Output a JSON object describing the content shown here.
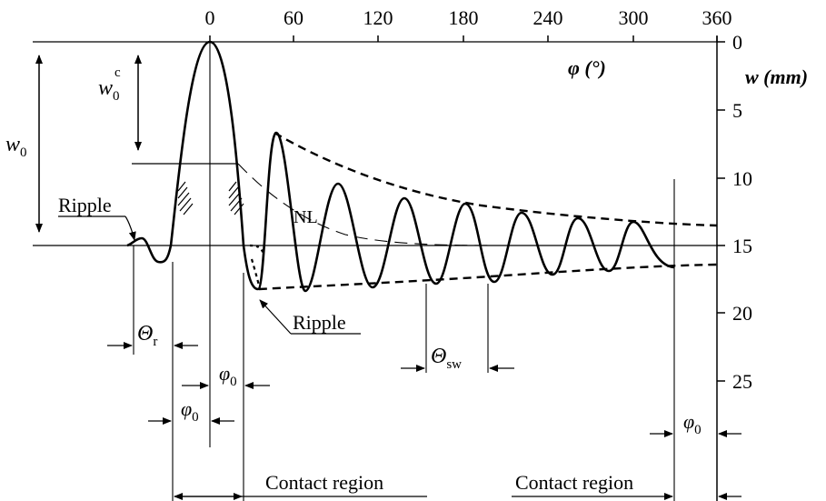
{
  "top_axis": {
    "ticks": [
      "0",
      "60",
      "120",
      "180",
      "240",
      "300",
      "360"
    ],
    "label": "φ (°)"
  },
  "right_axis": {
    "ticks": [
      "0",
      "5",
      "10",
      "15",
      "20",
      "25"
    ],
    "label": "w (mm)"
  },
  "labels": {
    "w0": "w",
    "w0_sub": "0",
    "w0c": "w",
    "w0c_sub": "0",
    "w0c_sup": "c",
    "ripple_top": "Ripple",
    "ripple_bottom": "Ripple",
    "nl": "NL",
    "theta_r": "Θ",
    "theta_r_sub": "r",
    "theta_sw": "Θ",
    "theta_sw_sub": "sw",
    "phi0": "φ",
    "phi0_sub": "0",
    "contact_left": "Contact region",
    "contact_right": "Contact region"
  }
}
